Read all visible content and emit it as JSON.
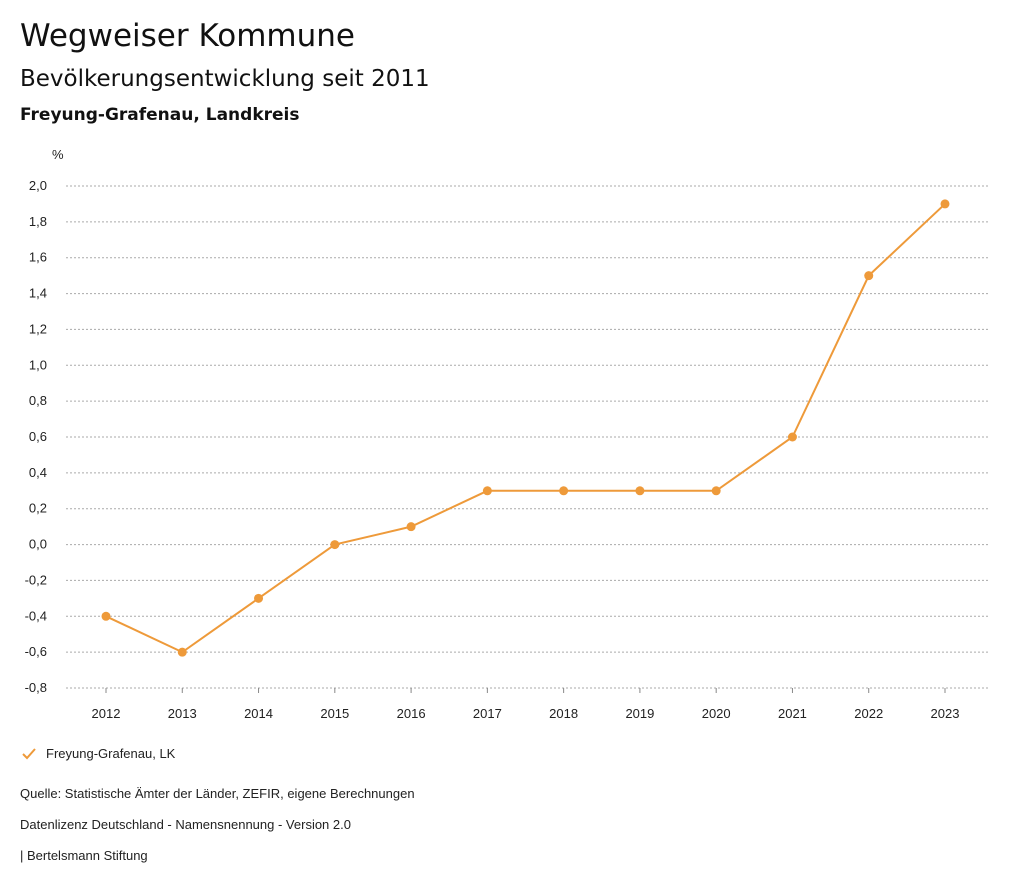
{
  "header": {
    "title": "Wegweiser Kommune",
    "subtitle": "Bevölkerungsentwicklung seit 2011",
    "region": "Freyung-Grafenau, Landkreis"
  },
  "chart_data": {
    "type": "line",
    "title": "Bevölkerungsentwicklung seit 2011",
    "ylabel": "%",
    "xlabel": "",
    "ylim": [
      -0.8,
      2.0
    ],
    "yticks": [
      "2,0",
      "1,8",
      "1,6",
      "1,4",
      "1,2",
      "1,0",
      "0,8",
      "0,6",
      "0,4",
      "0,2",
      "0,0",
      "-0,2",
      "-0,4",
      "-0,6",
      "-0,8"
    ],
    "ytick_values": [
      2.0,
      1.8,
      1.6,
      1.4,
      1.2,
      1.0,
      0.8,
      0.6,
      0.4,
      0.2,
      0.0,
      -0.2,
      -0.4,
      -0.6,
      -0.8
    ],
    "categories": [
      "2012",
      "2013",
      "2014",
      "2015",
      "2016",
      "2017",
      "2018",
      "2019",
      "2020",
      "2021",
      "2022",
      "2023"
    ],
    "series": [
      {
        "name": "Freyung-Grafenau, LK",
        "color": "#ee9a3a",
        "values": [
          -0.4,
          -0.6,
          -0.3,
          0.0,
          0.1,
          0.3,
          0.3,
          0.3,
          0.3,
          0.6,
          1.5,
          1.9
        ]
      }
    ],
    "grid": true,
    "legend": "bottom-left"
  },
  "footer": {
    "source": "Quelle: Statistische Ämter der Länder, ZEFIR, eigene Berechnungen",
    "license": "Datenlizenz Deutschland - Namensnennung - Version 2.0",
    "publisher": "| Bertelsmann Stiftung"
  }
}
